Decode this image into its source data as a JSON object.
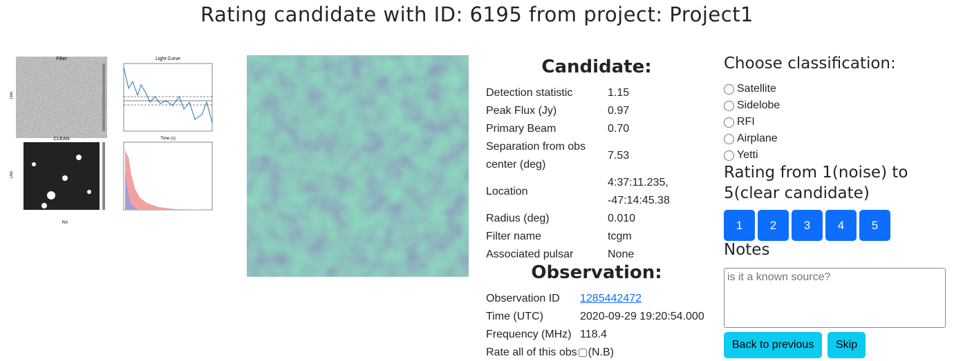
{
  "header": {
    "title": "Rating candidate with ID: 6195 from project: Project1"
  },
  "thumbnail": {
    "panels": [
      "Filter",
      "Light Curve",
      "CLEAN"
    ],
    "axis_labels": [
      "Dec",
      "Time (s)",
      "Dec",
      "RA"
    ]
  },
  "candidate": {
    "heading": "Candidate:",
    "rows": [
      [
        "Detection statistic",
        "1.15"
      ],
      [
        "Peak Flux (Jy)",
        "0.97"
      ],
      [
        "Primary Beam",
        "0.70"
      ],
      [
        "Separation from obs center (deg)",
        "7.53"
      ],
      [
        "Location",
        "4:37:11.235, -47:14:45.38"
      ],
      [
        "Radius (deg)",
        "0.010"
      ],
      [
        "Filter name",
        "tcgm"
      ],
      [
        "Associated pulsar",
        "None"
      ]
    ]
  },
  "observation": {
    "heading": "Observation:",
    "rows": [
      [
        "Observation ID",
        "1285442472"
      ],
      [
        "Time (UTC)",
        "2020-09-29 19:20:54.000"
      ],
      [
        "Frequency (MHz)",
        "118.4"
      ]
    ],
    "rate_all": {
      "label": "Rate all of this obs",
      "note": "(N.B)"
    }
  },
  "classification": {
    "heading": "Choose classification:",
    "options": [
      "Satellite",
      "Sidelobe",
      "RFI",
      "Airplane",
      "Yetti"
    ]
  },
  "rating": {
    "heading": "Rating from 1(noise) to 5(clear candidate)",
    "buttons": [
      "1",
      "2",
      "3",
      "4",
      "5"
    ]
  },
  "notes": {
    "heading": "Notes",
    "placeholder": "is it a known source?"
  },
  "actions": [
    "Back to previous",
    "Skip"
  ]
}
